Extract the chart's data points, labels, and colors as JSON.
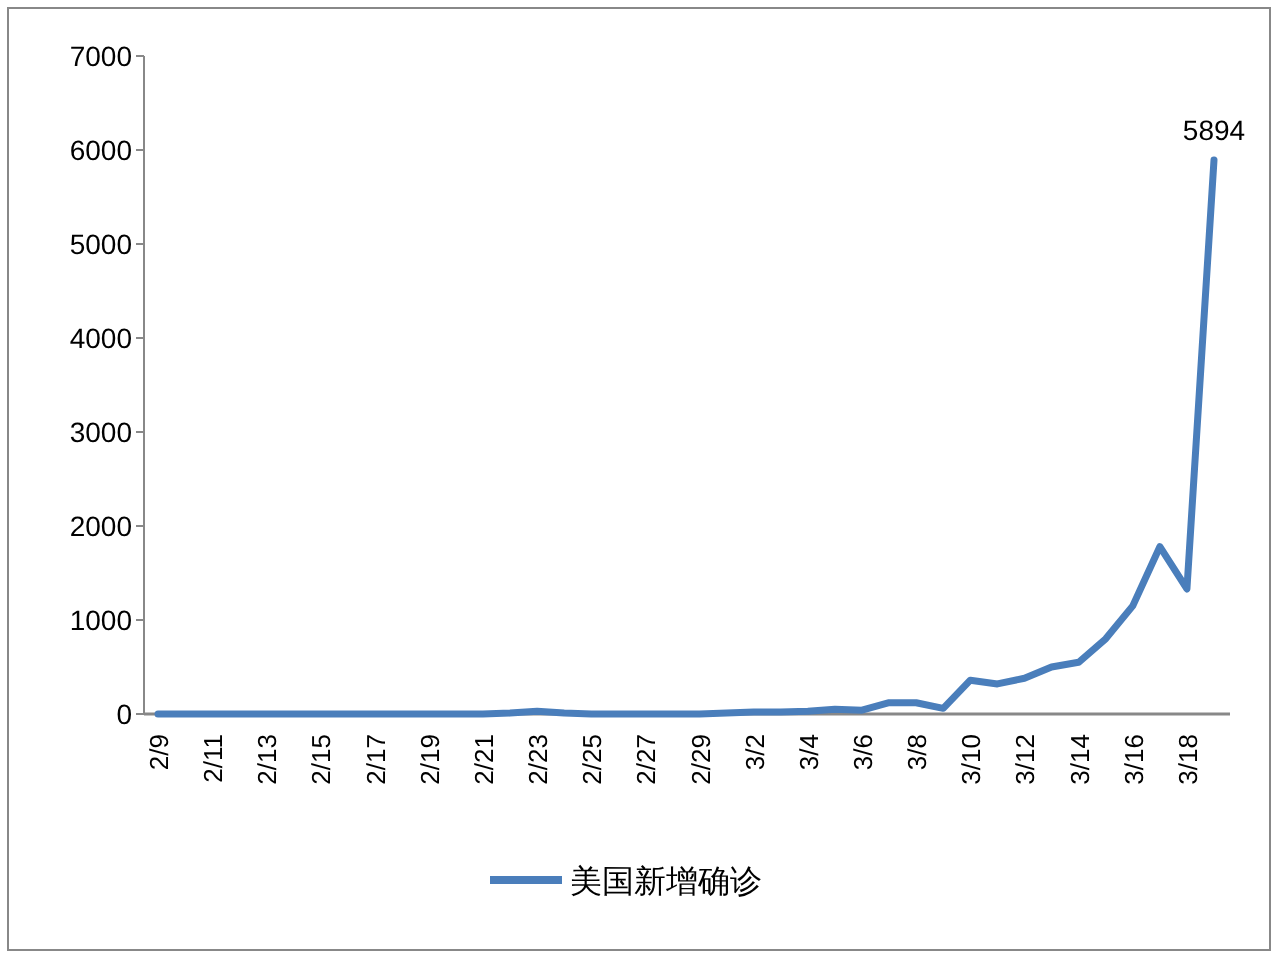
{
  "chart_data": {
    "type": "line",
    "categories": [
      "2/9",
      null,
      "2/11",
      null,
      "2/13",
      null,
      "2/15",
      null,
      "2/17",
      null,
      "2/19",
      null,
      "2/21",
      null,
      "2/23",
      null,
      "2/25",
      null,
      "2/27",
      null,
      "2/29",
      null,
      "3/2",
      null,
      "3/4",
      null,
      "3/6",
      null,
      "3/8",
      null,
      "3/10",
      null,
      "3/12",
      null,
      "3/14",
      null,
      "3/16",
      null,
      "3/18",
      null
    ],
    "series": [
      {
        "name": "美国新增确诊",
        "color": "#4a7ebb",
        "values": [
          0,
          0,
          0,
          0,
          0,
          0,
          0,
          0,
          0,
          0,
          0,
          0,
          0,
          10,
          30,
          10,
          0,
          0,
          0,
          0,
          0,
          10,
          20,
          20,
          30,
          50,
          40,
          120,
          120,
          60,
          360,
          320,
          380,
          500,
          550,
          800,
          1150,
          1780,
          1330,
          5894
        ],
        "value_labels": [
          null,
          null,
          null,
          null,
          null,
          null,
          null,
          null,
          null,
          null,
          null,
          null,
          null,
          null,
          null,
          null,
          null,
          null,
          null,
          null,
          null,
          null,
          null,
          null,
          null,
          null,
          null,
          null,
          null,
          null,
          null,
          null,
          null,
          null,
          null,
          null,
          null,
          null,
          null,
          "5894"
        ]
      }
    ],
    "ylim": [
      0,
      7000
    ],
    "yticks": [
      0,
      1000,
      2000,
      3000,
      4000,
      5000,
      6000,
      7000
    ],
    "grid": false,
    "legend": "bottom"
  }
}
